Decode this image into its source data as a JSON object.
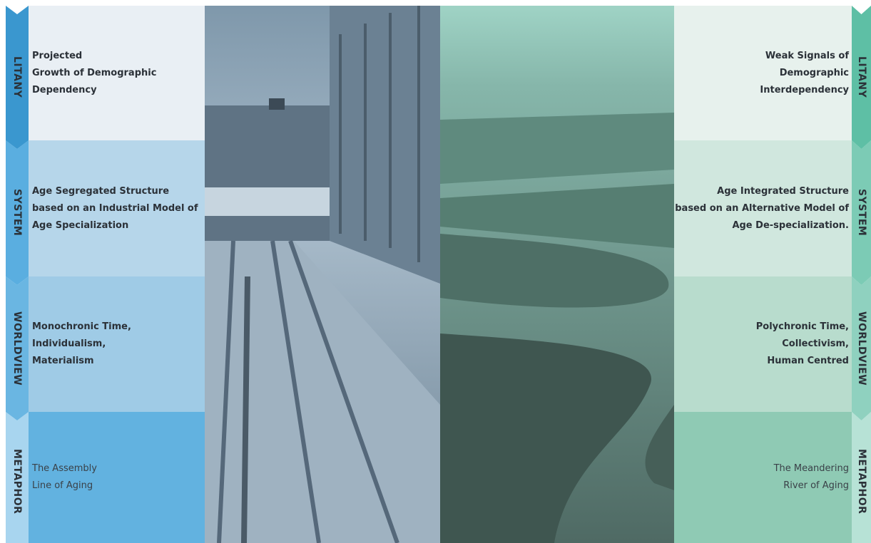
{
  "levels": [
    "LITANY",
    "SYSTEM",
    "WORLDVIEW",
    "METAPHOR"
  ],
  "left": {
    "cells": [
      [
        "Projected",
        "Growth of Demographic",
        "Dependency"
      ],
      [
        "Age Segregated Structure",
        "based on an Industrial Model of",
        "Age Specialization"
      ],
      [
        "Monochronic Time,",
        "Individualism,",
        "Materialism"
      ],
      [
        "The Assembly",
        "Line of Aging"
      ]
    ]
  },
  "right": {
    "cells": [
      [
        "Weak Signals of",
        "Demographic",
        "Interdependency"
      ],
      [
        "Age Integrated Structure",
        "based on an Alternative Model of",
        "Age De-specialization."
      ],
      [
        "Polychronic Time,",
        "Collectivism,",
        "Human Centred"
      ],
      [
        "The Meandering",
        "River of Aging"
      ]
    ]
  }
}
